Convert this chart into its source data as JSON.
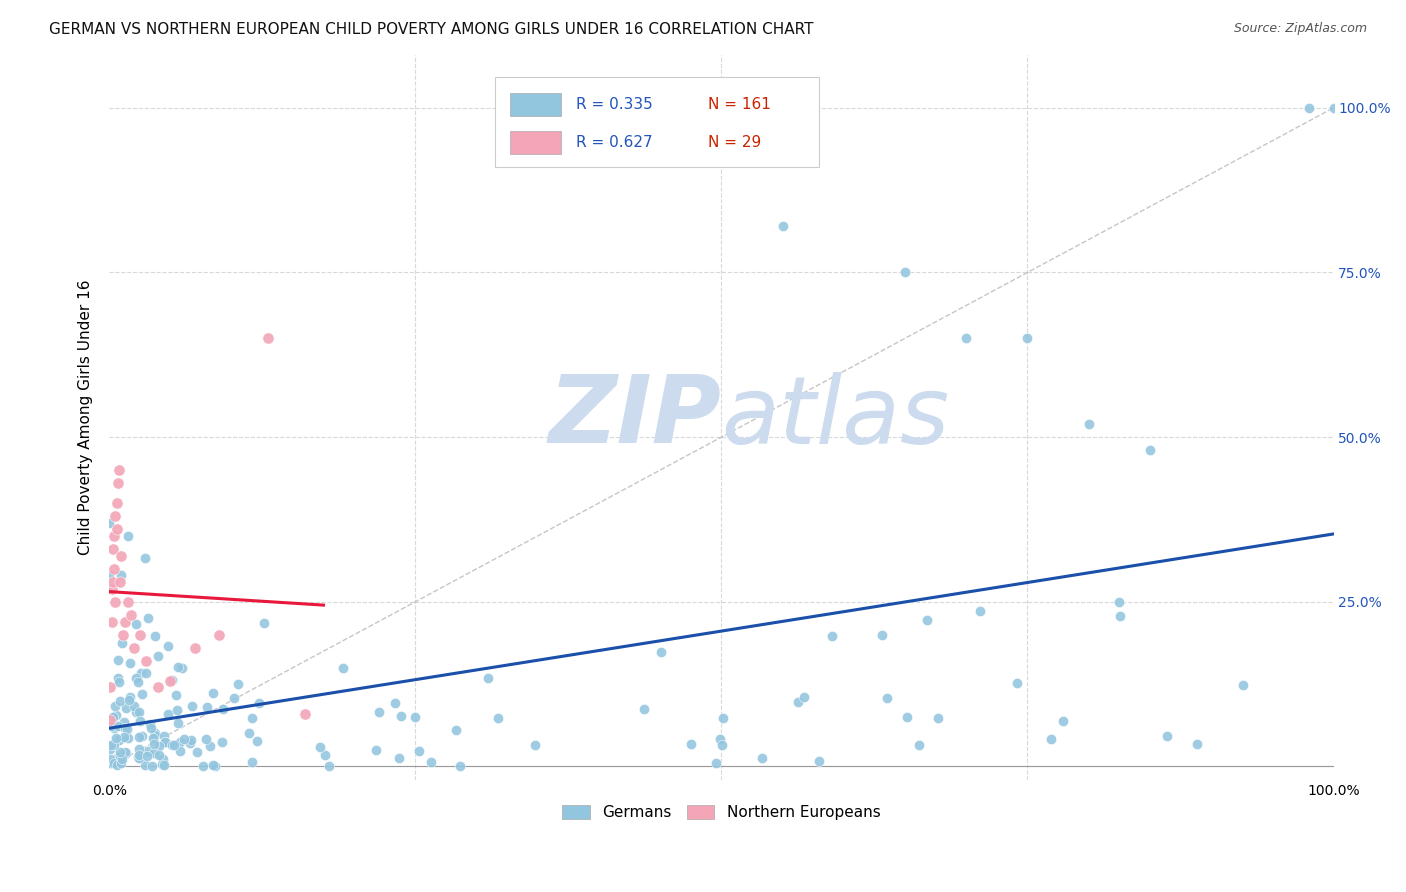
{
  "title": "GERMAN VS NORTHERN EUROPEAN CHILD POVERTY AMONG GIRLS UNDER 16 CORRELATION CHART",
  "source": "Source: ZipAtlas.com",
  "ylabel": "Child Poverty Among Girls Under 16",
  "german_R": "0.335",
  "german_N": "161",
  "northern_R": "0.627",
  "northern_N": "29",
  "german_color": "#92c5de",
  "northern_color": "#f4a6b8",
  "german_line_color": "#1a4faa",
  "northern_line_color": "#e8183c",
  "diagonal_line_color": "#c0c0c0",
  "background_color": "#ffffff",
  "grid_color": "#d8d8d8",
  "watermark_color": "#ccdcee",
  "xlim": [
    0.0,
    1.0
  ],
  "ylim": [
    -0.02,
    1.08
  ]
}
